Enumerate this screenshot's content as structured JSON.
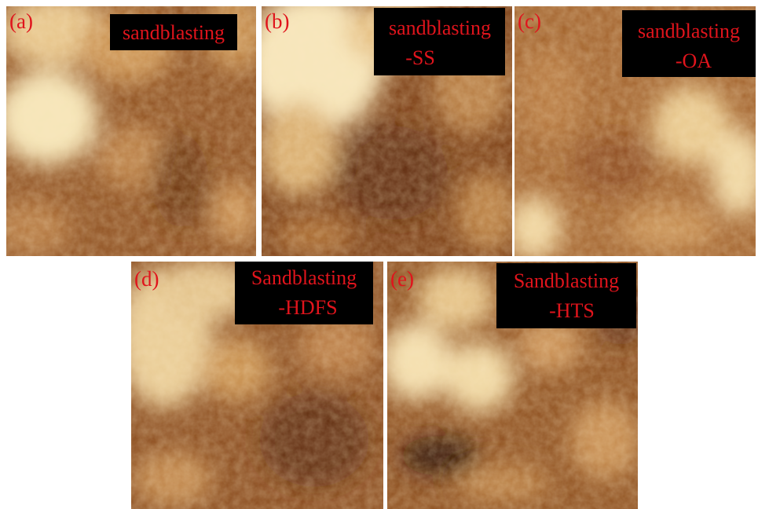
{
  "panels": [
    {
      "label": "(a)",
      "caption": [
        "sandblasting"
      ]
    },
    {
      "label": "(b)",
      "caption": [
        "sandblasting",
        "-SS"
      ]
    },
    {
      "label": "(c)",
      "caption": [
        "sandblasting",
        "-OA"
      ]
    },
    {
      "label": "(d)",
      "caption": [
        "Sandblasting",
        "-HDFS"
      ]
    },
    {
      "label": "(e)",
      "caption": [
        "Sandblasting",
        "-HTS"
      ]
    }
  ]
}
